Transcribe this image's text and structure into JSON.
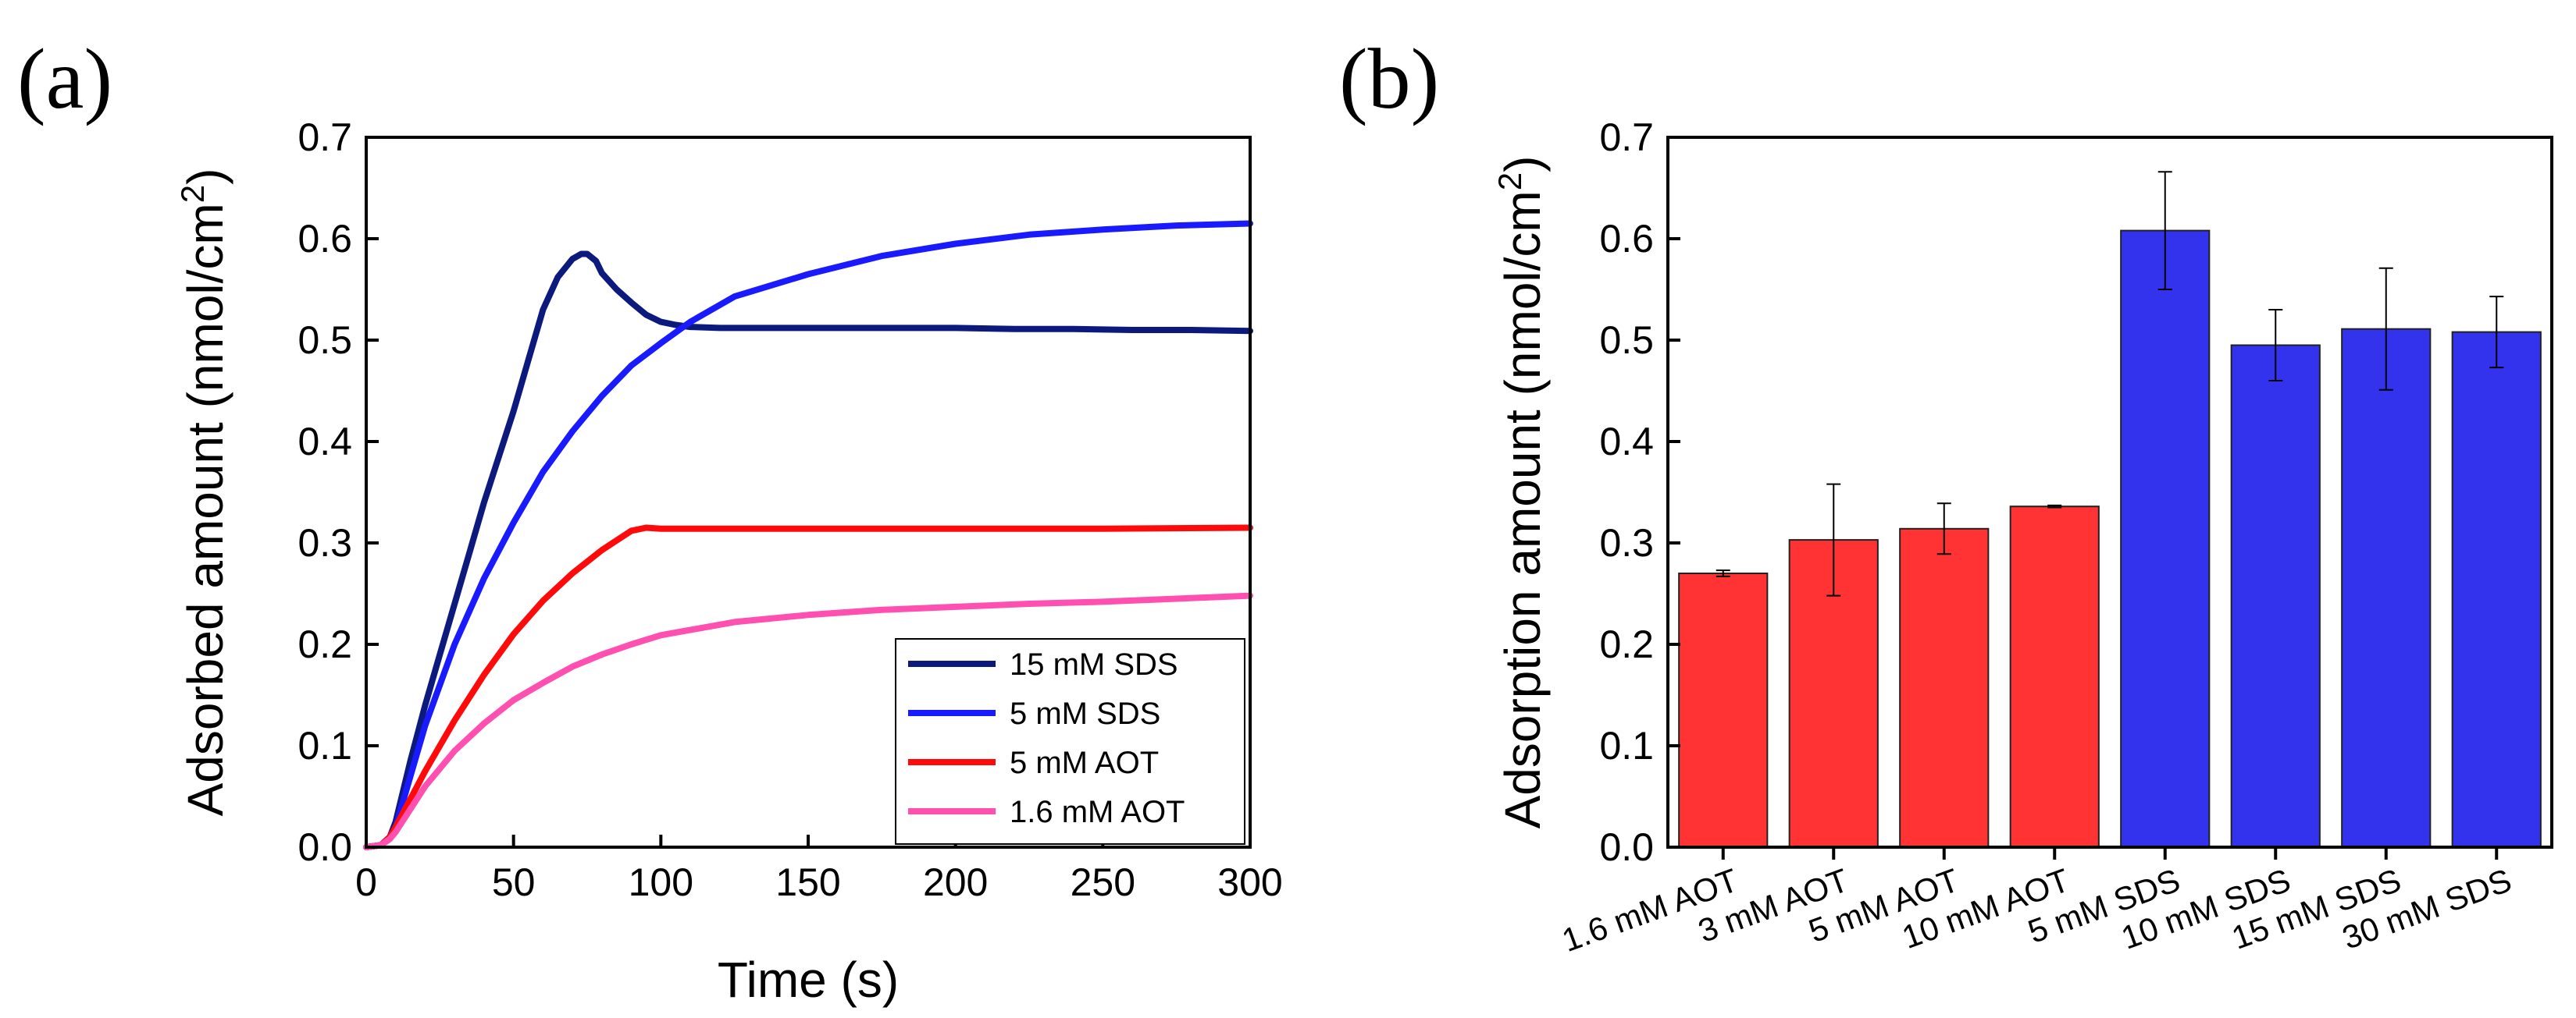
{
  "figure": {
    "panel_a_label": "(a)",
    "panel_b_label": "(b)"
  },
  "chart_data": [
    {
      "type": "line",
      "panel": "(a)",
      "title": "",
      "xlabel": "Time (s)",
      "ylabel": "Adsorbed amount (nmol/cm",
      "ylabel_superscript": "2",
      "ylabel_close": ")",
      "xlim": [
        0,
        300
      ],
      "ylim": [
        0,
        0.7
      ],
      "xticks": [
        0,
        50,
        100,
        150,
        200,
        250,
        300
      ],
      "xtick_labels": [
        "0",
        "50",
        "100",
        "150",
        "200",
        "250",
        "300"
      ],
      "yticks": [
        0,
        0.1,
        0.2,
        0.3,
        0.4,
        0.5,
        0.6,
        0.7
      ],
      "ytick_labels": [
        "0.0",
        "0.1",
        "0.2",
        "0.3",
        "0.4",
        "0.5",
        "0.6",
        "0.7"
      ],
      "legend_position": "bottom-right",
      "series": [
        {
          "name": "15 mM SDS",
          "color": "#0d1a7d",
          "x": [
            0,
            5,
            8,
            10,
            15,
            20,
            25,
            30,
            35,
            40,
            45,
            50,
            55,
            60,
            65,
            70,
            73,
            75,
            78,
            80,
            85,
            90,
            95,
            100,
            105,
            110,
            120,
            130,
            140,
            150,
            160,
            180,
            200,
            220,
            240,
            260,
            280,
            300
          ],
          "y": [
            0,
            0.002,
            0.01,
            0.025,
            0.085,
            0.14,
            0.19,
            0.24,
            0.29,
            0.34,
            0.385,
            0.43,
            0.48,
            0.53,
            0.562,
            0.58,
            0.585,
            0.585,
            0.578,
            0.566,
            0.55,
            0.537,
            0.525,
            0.518,
            0.515,
            0.513,
            0.512,
            0.512,
            0.512,
            0.512,
            0.512,
            0.512,
            0.512,
            0.511,
            0.511,
            0.51,
            0.51,
            0.509
          ]
        },
        {
          "name": "5 mM SDS",
          "color": "#1a1aff",
          "x": [
            0,
            5,
            8,
            10,
            15,
            20,
            30,
            40,
            50,
            60,
            70,
            80,
            90,
            100,
            110,
            125,
            150,
            175,
            200,
            225,
            250,
            275,
            300
          ],
          "y": [
            0,
            0.002,
            0.01,
            0.02,
            0.07,
            0.12,
            0.2,
            0.265,
            0.32,
            0.37,
            0.41,
            0.445,
            0.475,
            0.497,
            0.518,
            0.543,
            0.565,
            0.583,
            0.595,
            0.604,
            0.609,
            0.613,
            0.615
          ]
        },
        {
          "name": "5 mM AOT",
          "color": "#ff0a0a",
          "x": [
            0,
            5,
            8,
            10,
            20,
            30,
            40,
            50,
            60,
            70,
            80,
            90,
            95,
            100,
            120,
            150,
            200,
            250,
            300
          ],
          "y": [
            0,
            0.002,
            0.01,
            0.02,
            0.075,
            0.125,
            0.17,
            0.21,
            0.243,
            0.27,
            0.293,
            0.312,
            0.315,
            0.314,
            0.314,
            0.314,
            0.314,
            0.314,
            0.315
          ]
        },
        {
          "name": "1.6 mM AOT",
          "color": "#ff4fb0",
          "x": [
            0,
            5,
            8,
            10,
            20,
            30,
            40,
            50,
            60,
            70,
            80,
            90,
            100,
            125,
            150,
            175,
            200,
            225,
            250,
            275,
            300
          ],
          "y": [
            0,
            0.002,
            0.008,
            0.015,
            0.06,
            0.095,
            0.122,
            0.145,
            0.162,
            0.178,
            0.19,
            0.2,
            0.209,
            0.222,
            0.229,
            0.234,
            0.237,
            0.24,
            0.242,
            0.245,
            0.248
          ]
        }
      ]
    },
    {
      "type": "bar",
      "panel": "(b)",
      "title": "",
      "xlabel": "",
      "ylabel": "Adsorption amount (nmol/cm",
      "ylabel_superscript": "2",
      "ylabel_close": ")",
      "ylim": [
        0,
        0.7
      ],
      "yticks": [
        0,
        0.1,
        0.2,
        0.3,
        0.4,
        0.5,
        0.6,
        0.7
      ],
      "ytick_labels": [
        "0.0",
        "0.1",
        "0.2",
        "0.3",
        "0.4",
        "0.5",
        "0.6",
        "0.7"
      ],
      "categories": [
        "1.6 mM AOT",
        "3 mM AOT",
        "5 mM AOT",
        "10 mM AOT",
        "5 mM SDS",
        "10 mM SDS",
        "15 mM SDS",
        "30 mM SDS"
      ],
      "values": [
        0.27,
        0.303,
        0.314,
        0.336,
        0.608,
        0.495,
        0.511,
        0.508
      ],
      "errors": [
        0.003,
        0.055,
        0.025,
        0.001,
        0.058,
        0.035,
        0.06,
        0.035
      ],
      "colors": [
        "#ff3333",
        "#ff3333",
        "#ff3333",
        "#ff3333",
        "#3333ee",
        "#3333ee",
        "#3333ee",
        "#3333ee"
      ]
    }
  ]
}
